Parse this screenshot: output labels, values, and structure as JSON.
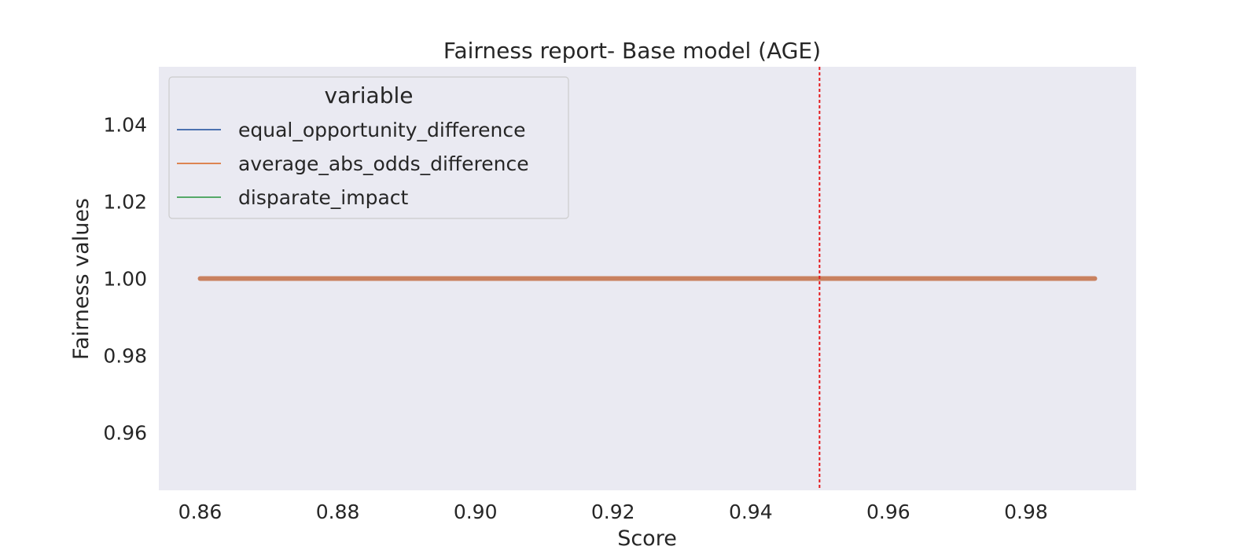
{
  "chart_data": {
    "type": "line",
    "title": "Fairness report- Base model (AGE)",
    "xlabel": "Score",
    "ylabel": "Fairness values",
    "xlim": [
      0.854,
      0.996
    ],
    "ylim": [
      0.945,
      1.055
    ],
    "x_ticks": [
      "0.86",
      "0.88",
      "0.90",
      "0.92",
      "0.94",
      "0.96",
      "0.98"
    ],
    "x_tick_values": [
      0.86,
      0.88,
      0.9,
      0.92,
      0.94,
      0.96,
      0.98
    ],
    "y_ticks": [
      "0.96",
      "0.98",
      "1.00",
      "1.02",
      "1.04"
    ],
    "y_tick_values": [
      0.96,
      0.98,
      1.0,
      1.02,
      1.04
    ],
    "grid": false,
    "background": "#eaeaf2",
    "legend": {
      "title": "variable",
      "placement": "upper-left"
    },
    "series": [
      {
        "name": "equal_opportunity_difference",
        "color": "#4c72b0",
        "x": [
          0.86,
          0.99
        ],
        "y": [
          1.0,
          1.0
        ]
      },
      {
        "name": "average_abs_odds_difference",
        "color": "#dd8452",
        "x": [
          0.86,
          0.99
        ],
        "y": [
          1.0,
          1.0
        ]
      },
      {
        "name": "disparate_impact",
        "color": "#55a868",
        "x": [
          0.86,
          0.99
        ],
        "y": [
          1.0,
          1.0
        ]
      }
    ],
    "plotted_line": {
      "x": [
        0.86,
        0.99
      ],
      "y": [
        1.0,
        1.0
      ],
      "color": "#c9815f"
    },
    "threshold_line": {
      "x": 0.95,
      "color": "#e31a1c",
      "style": "dotted"
    }
  }
}
